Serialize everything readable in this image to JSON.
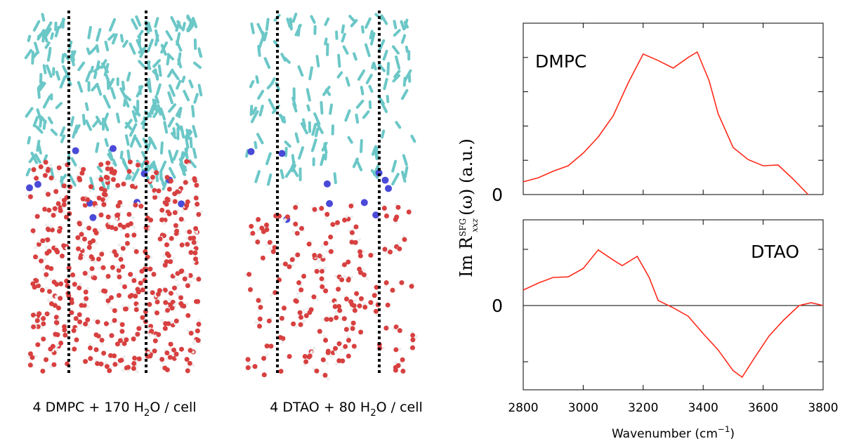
{
  "captions": [
    {
      "text": "4 DMPC + 170 H",
      "sub": "2",
      "rest": "O / cell"
    },
    {
      "text": "4 DTAO + 80 H",
      "sub": "2",
      "rest": "O / cell"
    }
  ],
  "y_label": {
    "text": "Im R",
    "sup": "SFG",
    "sub": "xxz",
    "rest": "(ω) (a.u.)"
  },
  "chart_data": [
    {
      "type": "line",
      "label": "DMPC",
      "color": "#ff2a1a",
      "x": [
        2800,
        2850,
        2900,
        2950,
        3000,
        3050,
        3100,
        3150,
        3200,
        3250,
        3300,
        3350,
        3380,
        3420,
        3450,
        3500,
        3550,
        3600,
        3650,
        3700,
        3750
      ],
      "values": [
        0.37,
        0.49,
        0.68,
        0.84,
        1.21,
        1.68,
        2.3,
        3.26,
        4.1,
        3.91,
        3.69,
        4.0,
        4.16,
        3.32,
        2.36,
        1.37,
        1.02,
        0.84,
        0.86,
        0.45,
        0
      ],
      "xlim": [
        2800,
        3800
      ],
      "minor_xticks": [
        3000,
        3200,
        3400,
        3600
      ],
      "ylim": [
        0,
        5
      ],
      "yticks": [
        0
      ],
      "minor_yticks": [
        1,
        2,
        3,
        4
      ]
    },
    {
      "type": "line",
      "label": "DTAO",
      "color": "#ff2a1a",
      "x": [
        2800,
        2850,
        2900,
        2950,
        3000,
        3050,
        3100,
        3130,
        3180,
        3220,
        3250,
        3300,
        3350,
        3400,
        3450,
        3500,
        3530,
        3570,
        3620,
        3670,
        3720,
        3760,
        3800
      ],
      "values": [
        0.55,
        0.8,
        1.0,
        1.02,
        1.32,
        1.98,
        1.62,
        1.42,
        1.75,
        1.0,
        0.18,
        -0.08,
        -0.38,
        -1.0,
        -1.58,
        -2.32,
        -2.55,
        -1.88,
        -1.08,
        -0.5,
        0,
        0.1,
        0
      ],
      "xlim": [
        2800,
        3800
      ],
      "xticks": [
        2800,
        3000,
        3200,
        3400,
        3600,
        3800
      ],
      "x_label": {
        "text": "Wavenumber (cm",
        "sup": "−1",
        "rest": ")"
      },
      "ylim": [
        -3,
        3.05
      ],
      "yticks": [
        0
      ],
      "minor_yticks": [
        -2,
        2
      ],
      "zero_line": true
    }
  ]
}
